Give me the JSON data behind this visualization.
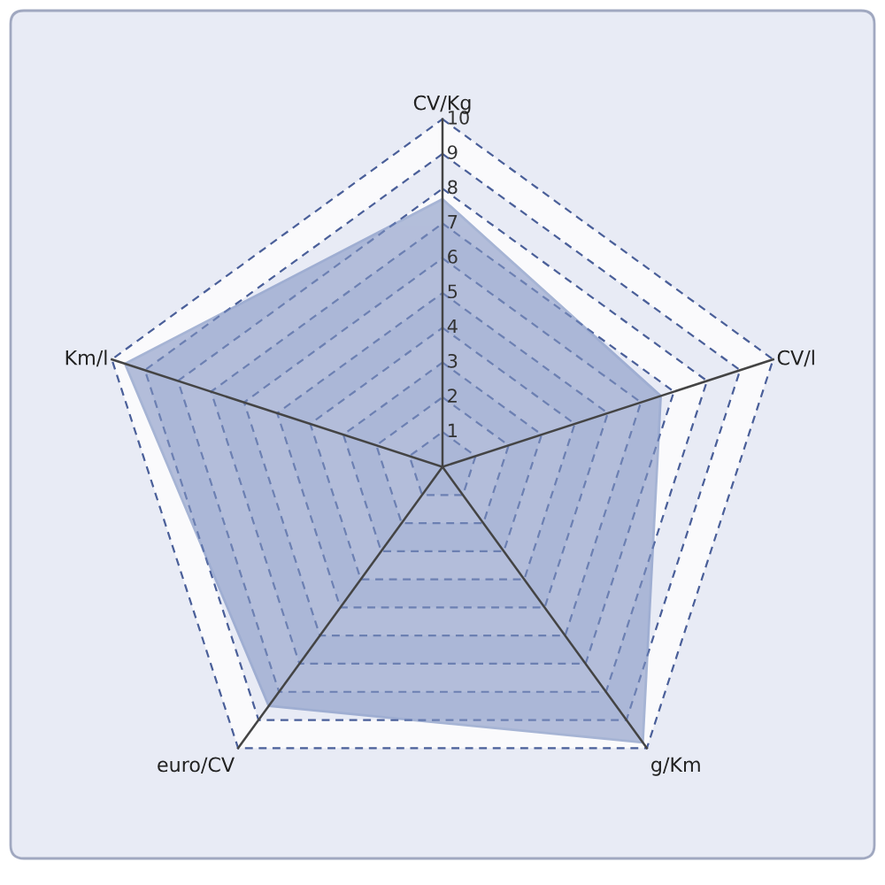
{
  "chart_data": {
    "type": "radar",
    "categories": [
      "CV/Kg",
      "CV/l",
      "g/Km",
      "euro/CV",
      "Km/l"
    ],
    "series": [
      {
        "color": "#8496c4",
        "values": [
          7.7,
          6.6,
          9.8,
          8.5,
          9.6
        ]
      }
    ],
    "ylim": [
      0,
      10
    ],
    "yticks": [
      1,
      2,
      3,
      4,
      5,
      6,
      7,
      8,
      9,
      10
    ],
    "grid": true
  }
}
